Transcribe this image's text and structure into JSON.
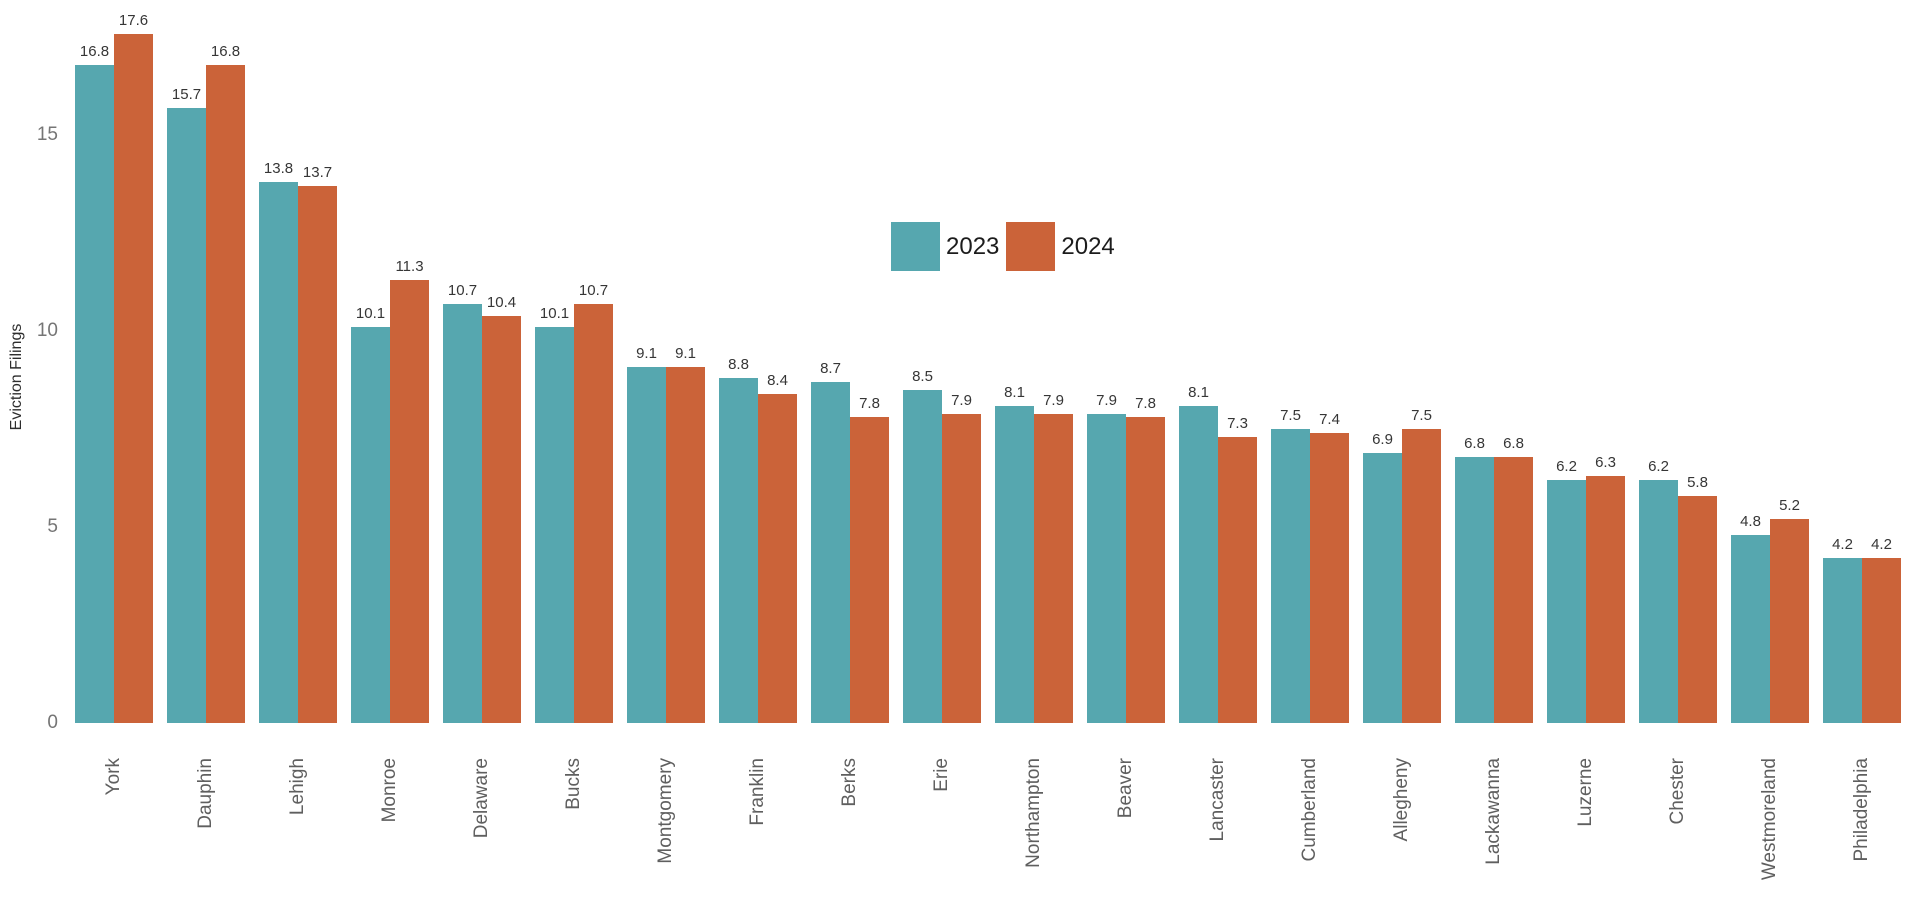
{
  "chart_data": {
    "type": "bar",
    "title": "",
    "xlabel": "",
    "ylabel": "Eviction Filings",
    "categories": [
      "York",
      "Dauphin",
      "Lehigh",
      "Monroe",
      "Delaware",
      "Bucks",
      "Montgomery",
      "Franklin",
      "Berks",
      "Erie",
      "Northampton",
      "Beaver",
      "Lancaster",
      "Cumberland",
      "Allegheny",
      "Lackawanna",
      "Luzerne",
      "Chester",
      "Westmoreland",
      "Philadelphia"
    ],
    "series": [
      {
        "name": "2023",
        "color": "#56A7AF",
        "values": [
          16.8,
          15.7,
          13.8,
          10.1,
          10.7,
          10.1,
          9.1,
          8.8,
          8.7,
          8.5,
          8.1,
          7.9,
          8.1,
          7.5,
          6.9,
          6.8,
          6.2,
          6.2,
          4.8,
          4.2
        ]
      },
      {
        "name": "2024",
        "color": "#CB6339",
        "values": [
          17.6,
          16.8,
          13.7,
          11.3,
          10.4,
          10.7,
          9.1,
          8.4,
          7.8,
          7.9,
          7.9,
          7.8,
          7.3,
          7.4,
          7.5,
          6.8,
          6.3,
          5.8,
          5.2,
          4.2
        ]
      }
    ],
    "yticks": [
      0,
      5,
      10,
      15
    ],
    "ylim": [
      0,
      18.7
    ],
    "grid": false,
    "legend_position": "center",
    "value_labels": true,
    "bar_value_format": "one-decimal"
  },
  "colors": {
    "background": "#ffffff",
    "series_2023": "#56A7AF",
    "series_2024": "#CB6339",
    "value_label_text": "#363636",
    "axis_tick_text": "#757575",
    "category_text": "#5f5f5f",
    "legend_text": "#1c1c1c"
  }
}
